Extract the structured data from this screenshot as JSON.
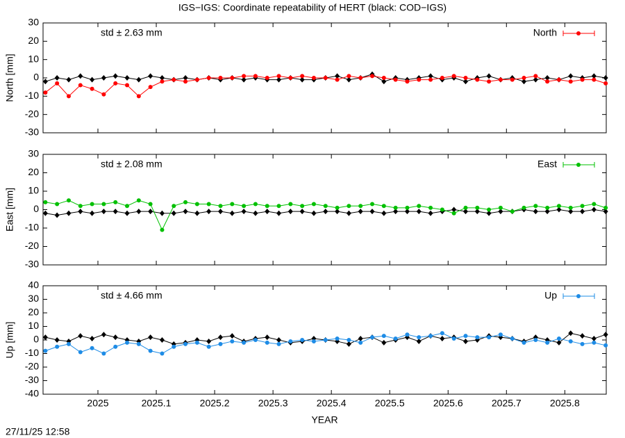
{
  "title": "IGS−IGS: Coordinate repeatability of HERT (black: COD−IGS)",
  "timestamp": "27/11/25 12:58",
  "chart_data": [
    {
      "type": "line",
      "ylabel": "North [mm]",
      "annotation": "std ± 2.63 mm",
      "legend": "top-right",
      "xlim": [
        2024.906,
        2025.871
      ],
      "xticks": [
        2025,
        2025.1,
        2025.2,
        2025.3,
        2025.4,
        2025.5,
        2025.6,
        2025.7,
        2025.8
      ],
      "ylim": [
        -30,
        30
      ],
      "yticks": [
        -30,
        -20,
        -10,
        0,
        10,
        20,
        30
      ],
      "x": [
        2024.91,
        2024.93,
        2024.95,
        2024.97,
        2024.99,
        2025.01,
        2025.03,
        2025.05,
        2025.07,
        2025.09,
        2025.11,
        2025.13,
        2025.15,
        2025.17,
        2025.19,
        2025.21,
        2025.23,
        2025.25,
        2025.27,
        2025.29,
        2025.31,
        2025.33,
        2025.35,
        2025.37,
        2025.39,
        2025.41,
        2025.43,
        2025.45,
        2025.47,
        2025.49,
        2025.51,
        2025.53,
        2025.55,
        2025.57,
        2025.59,
        2025.61,
        2025.63,
        2025.65,
        2025.67,
        2025.69,
        2025.71,
        2025.73,
        2025.75,
        2025.77,
        2025.79,
        2025.81,
        2025.83,
        2025.85,
        2025.87
      ],
      "series": [
        {
          "color": "#000000",
          "values": [
            -2,
            0,
            -1,
            1,
            -1,
            0,
            1,
            0,
            -1,
            1,
            0,
            -1,
            0,
            -1,
            0,
            -1,
            0,
            -1,
            0,
            -1,
            -1,
            0,
            -1,
            -1,
            0,
            1,
            -1,
            0,
            2,
            -2,
            0,
            -1,
            0,
            1,
            -1,
            0,
            -2,
            0,
            1,
            -1,
            0,
            -2,
            -1,
            0,
            -1,
            1,
            0,
            1,
            0
          ]
        },
        {
          "name": "North",
          "color": "#ff0000",
          "values": [
            -8,
            -3,
            -10,
            -4,
            -6,
            -9,
            -3,
            -4,
            -10,
            -5,
            -2,
            -1,
            -2,
            -1,
            0,
            0,
            0,
            1,
            1,
            0,
            1,
            0,
            1,
            0,
            0,
            -1,
            1,
            0,
            1,
            0,
            -1,
            -2,
            -1,
            -1,
            0,
            1,
            0,
            -1,
            -2,
            -1,
            -1,
            0,
            1,
            -2,
            -1,
            -2,
            -1,
            -1,
            -3
          ]
        }
      ]
    },
    {
      "type": "line",
      "ylabel": "East [mm]",
      "annotation": "std ± 2.08 mm",
      "legend": "top-right",
      "xlim": [
        2024.906,
        2025.871
      ],
      "xticks": [
        2025,
        2025.1,
        2025.2,
        2025.3,
        2025.4,
        2025.5,
        2025.6,
        2025.7,
        2025.8
      ],
      "ylim": [
        -30,
        30
      ],
      "yticks": [
        -30,
        -20,
        -10,
        0,
        10,
        20,
        30
      ],
      "x": [
        2024.91,
        2024.93,
        2024.95,
        2024.97,
        2024.99,
        2025.01,
        2025.03,
        2025.05,
        2025.07,
        2025.09,
        2025.11,
        2025.13,
        2025.15,
        2025.17,
        2025.19,
        2025.21,
        2025.23,
        2025.25,
        2025.27,
        2025.29,
        2025.31,
        2025.33,
        2025.35,
        2025.37,
        2025.39,
        2025.41,
        2025.43,
        2025.45,
        2025.47,
        2025.49,
        2025.51,
        2025.53,
        2025.55,
        2025.57,
        2025.59,
        2025.61,
        2025.63,
        2025.65,
        2025.67,
        2025.69,
        2025.71,
        2025.73,
        2025.75,
        2025.77,
        2025.79,
        2025.81,
        2025.83,
        2025.85,
        2025.87
      ],
      "series": [
        {
          "color": "#000000",
          "values": [
            -2,
            -3,
            -2,
            -1,
            -2,
            -1,
            -1,
            -2,
            -1,
            -1,
            -2,
            -2,
            -1,
            -2,
            -1,
            -1,
            -2,
            -1,
            -2,
            -1,
            -2,
            -1,
            -1,
            -2,
            -1,
            -1,
            -2,
            -1,
            -1,
            -2,
            -1,
            -1,
            -1,
            -2,
            -1,
            0,
            -1,
            -1,
            -2,
            -1,
            -1,
            0,
            -1,
            -1,
            0,
            -1,
            -1,
            0,
            -1
          ]
        },
        {
          "name": "East",
          "color": "#00c000",
          "values": [
            4,
            3,
            5,
            2,
            3,
            3,
            4,
            2,
            5,
            3,
            -11,
            2,
            4,
            3,
            3,
            2,
            3,
            2,
            3,
            2,
            2,
            3,
            2,
            3,
            2,
            1,
            2,
            2,
            3,
            2,
            1,
            1,
            2,
            1,
            0,
            -2,
            1,
            1,
            0,
            1,
            -1,
            1,
            2,
            1,
            2,
            1,
            2,
            3,
            1
          ]
        }
      ]
    },
    {
      "type": "line",
      "ylabel": "Up [mm]",
      "annotation": "std ± 4.66 mm",
      "legend": "top-right",
      "xlabel": "YEAR",
      "xlim": [
        2024.906,
        2025.871
      ],
      "xticks": [
        2025,
        2025.1,
        2025.2,
        2025.3,
        2025.4,
        2025.5,
        2025.6,
        2025.7,
        2025.8
      ],
      "ylim": [
        -40,
        40
      ],
      "yticks": [
        -40,
        -30,
        -20,
        -10,
        0,
        10,
        20,
        30,
        40
      ],
      "x": [
        2024.91,
        2024.93,
        2024.95,
        2024.97,
        2024.99,
        2025.01,
        2025.03,
        2025.05,
        2025.07,
        2025.09,
        2025.11,
        2025.13,
        2025.15,
        2025.17,
        2025.19,
        2025.21,
        2025.23,
        2025.25,
        2025.27,
        2025.29,
        2025.31,
        2025.33,
        2025.35,
        2025.37,
        2025.39,
        2025.41,
        2025.43,
        2025.45,
        2025.47,
        2025.49,
        2025.51,
        2025.53,
        2025.55,
        2025.57,
        2025.59,
        2025.61,
        2025.63,
        2025.65,
        2025.67,
        2025.69,
        2025.71,
        2025.73,
        2025.75,
        2025.77,
        2025.79,
        2025.81,
        2025.83,
        2025.85,
        2025.87
      ],
      "series": [
        {
          "color": "#000000",
          "values": [
            2,
            0,
            -1,
            3,
            1,
            4,
            2,
            0,
            -1,
            2,
            0,
            -3,
            -2,
            0,
            -1,
            2,
            3,
            -1,
            1,
            2,
            0,
            -2,
            -1,
            1,
            0,
            -1,
            -3,
            1,
            2,
            -2,
            0,
            2,
            -1,
            3,
            1,
            2,
            -1,
            0,
            3,
            2,
            1,
            -1,
            2,
            0,
            -2,
            5,
            3,
            1,
            4
          ]
        },
        {
          "name": "Up",
          "color": "#1e8ce6",
          "values": [
            -8,
            -5,
            -3,
            -9,
            -6,
            -10,
            -5,
            -2,
            -3,
            -8,
            -10,
            -5,
            -3,
            -2,
            -5,
            -3,
            -1,
            -2,
            0,
            -2,
            -3,
            -1,
            0,
            -1,
            0,
            1,
            0,
            -2,
            2,
            3,
            1,
            4,
            2,
            3,
            5,
            1,
            3,
            2,
            2,
            4,
            1,
            -2,
            0,
            -2,
            1,
            -1,
            -3,
            -2,
            -4
          ]
        }
      ]
    }
  ]
}
